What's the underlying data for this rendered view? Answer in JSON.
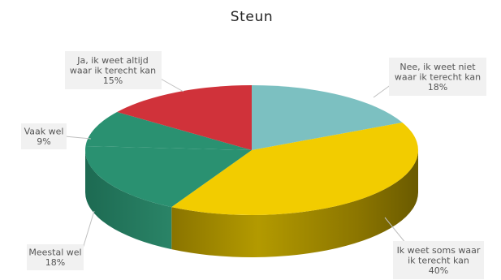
{
  "chart_data": {
    "type": "pie",
    "title": "Steun",
    "slices": [
      {
        "label": "Nee, ik weet niet waar ik terecht kan",
        "lines": [
          "Nee, ik weet niet",
          "waar ik terecht kan"
        ],
        "pct_label": "18%",
        "value": 18,
        "color": "#7cc0c1"
      },
      {
        "label": "Ik weet soms waar ik terecht kan",
        "lines": [
          "Ik weet soms waar",
          "ik terecht kan"
        ],
        "pct_label": "40%",
        "value": 40,
        "color": "#f2cc00"
      },
      {
        "label": "Meestal wel",
        "lines": [
          "Meestal wel"
        ],
        "pct_label": "18%",
        "value": 18,
        "color": "#2a9171"
      },
      {
        "label": "Vaak wel",
        "lines": [
          "Vaak wel"
        ],
        "pct_label": "9%",
        "value": 9,
        "color": "#2a9171"
      },
      {
        "label": "Ja, ik weet altijd waar ik terecht kan",
        "lines": [
          "Ja, ik weet altijd",
          "waar ik terecht kan"
        ],
        "pct_label": "15%",
        "value": 15,
        "color": "#d0323a"
      }
    ]
  }
}
